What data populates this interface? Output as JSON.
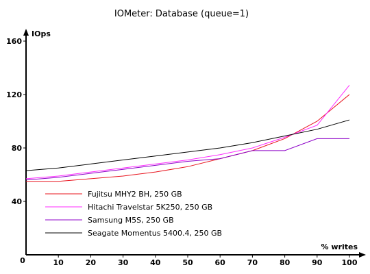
{
  "chart_data": {
    "type": "line",
    "title": "IOMeter: Database (queue=1)",
    "ylabel": "IOps",
    "xlabel": "% writes",
    "x": [
      0,
      10,
      20,
      30,
      40,
      50,
      60,
      70,
      80,
      90,
      100
    ],
    "xlim": [
      0,
      100
    ],
    "ylim": [
      0,
      160
    ],
    "xticks": [
      10,
      20,
      30,
      40,
      50,
      60,
      70,
      80,
      90,
      100
    ],
    "yticks": [
      40,
      80,
      120,
      160
    ],
    "origin_label": "0",
    "grid": false,
    "legend_position": "bottom-left",
    "series": [
      {
        "name": "Fujitsu MHY2 BH, 250 GB",
        "color": "#e8141e",
        "values": [
          55,
          55,
          57,
          59,
          62,
          66,
          72,
          78,
          87,
          100,
          120
        ]
      },
      {
        "name": "Hitachi Travelstar 5K250, 250 GB",
        "color": "#ff2bff",
        "values": [
          57,
          59,
          62,
          65,
          68,
          71,
          75,
          80,
          88,
          97,
          127
        ]
      },
      {
        "name": "Samsung M5S, 250 GB",
        "color": "#8c00c8",
        "values": [
          56,
          58,
          61,
          64,
          67,
          70,
          72,
          78,
          78,
          87,
          87
        ]
      },
      {
        "name": "Seagate Momentus 5400.4, 250 GB",
        "color": "#000000",
        "values": [
          63,
          65,
          68,
          71,
          74,
          77,
          80,
          84,
          89,
          94,
          101
        ]
      }
    ]
  }
}
